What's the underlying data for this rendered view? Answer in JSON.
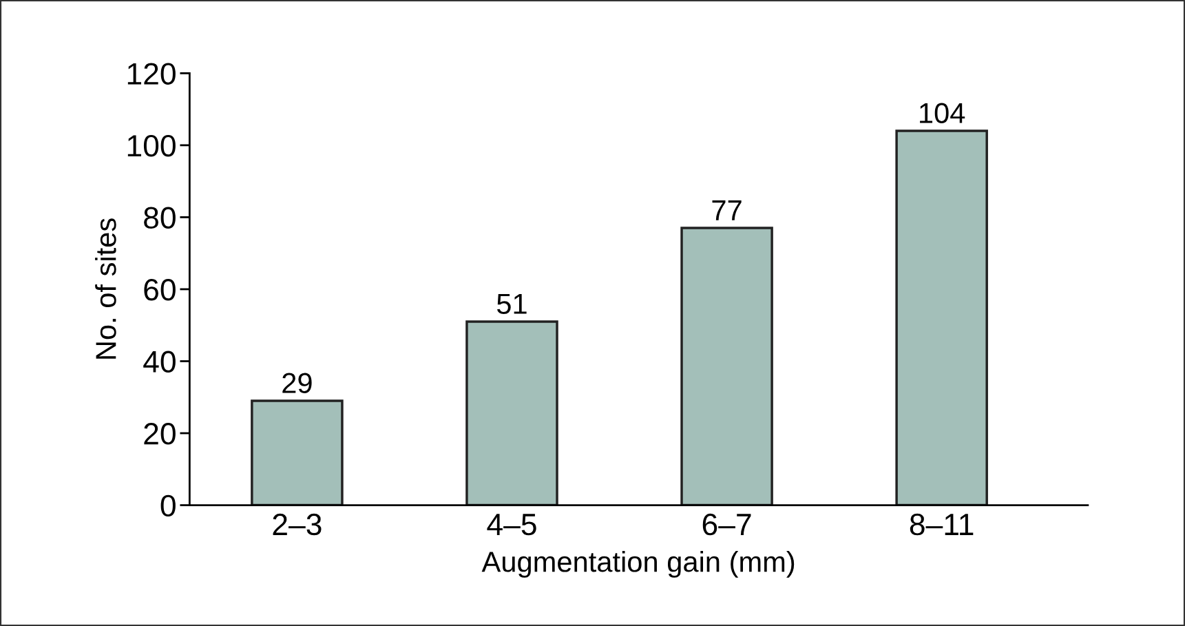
{
  "chart_data": {
    "type": "bar",
    "xlabel": "Augmentation gain (mm)",
    "ylabel": "No. of sites",
    "categories": [
      "2–3",
      "4–5",
      "6–7",
      "8–11"
    ],
    "values": [
      29,
      51,
      77,
      104
    ],
    "color": "#a3bfb9",
    "ylim": [
      0,
      120
    ],
    "yticks": [
      0,
      20,
      40,
      60,
      80,
      100,
      120
    ],
    "grid": false,
    "data_labels": true
  }
}
